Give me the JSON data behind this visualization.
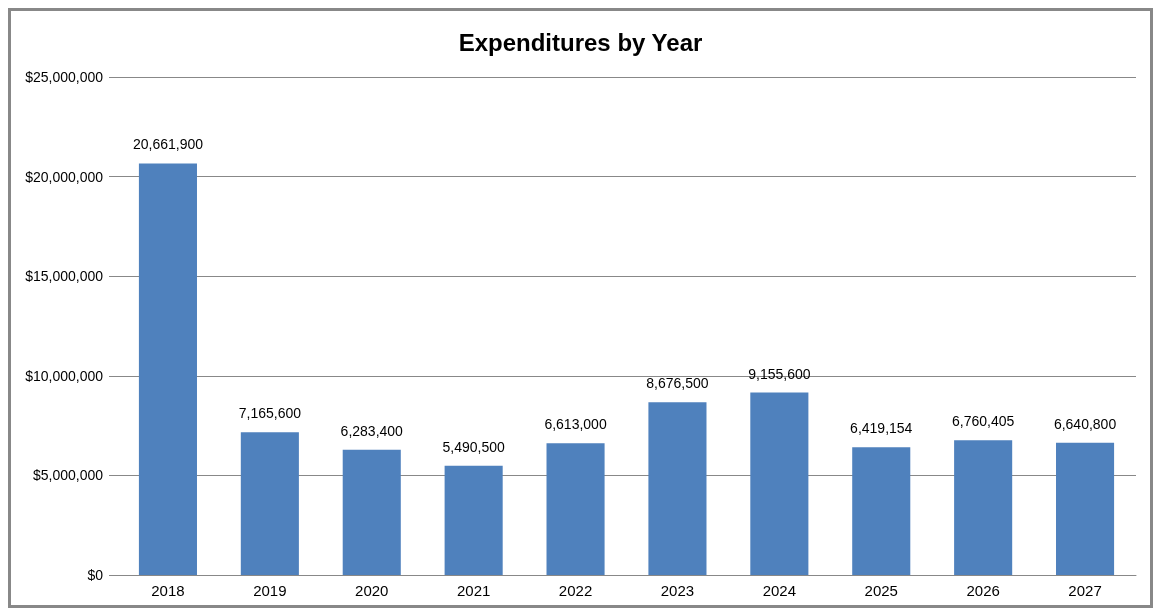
{
  "chart_data": {
    "type": "bar",
    "title": "Expenditures by Year",
    "categories": [
      "2018",
      "2019",
      "2020",
      "2021",
      "2022",
      "2023",
      "2024",
      "2025",
      "2026",
      "2027"
    ],
    "values": [
      20661900,
      7165600,
      6283400,
      5490500,
      6613000,
      8676500,
      9155600,
      6419154,
      6760405,
      6640800
    ],
    "color": "#4f81bd",
    "value_labels": [
      "20,661,900",
      "7,165,600",
      "6,283,400",
      "5,490,500",
      "6,613,000",
      "8,676,500",
      "9,155,600",
      "6,419,154",
      "6,760,405",
      "6,640,800"
    ],
    "ylim": [
      0,
      25000000
    ],
    "yticks": [
      {
        "value": 0,
        "label": "$0"
      },
      {
        "value": 5000000,
        "label": "$5,000,000"
      },
      {
        "value": 10000000,
        "label": "$10,000,000"
      },
      {
        "value": 15000000,
        "label": "$15,000,000"
      },
      {
        "value": 20000000,
        "label": "$20,000,000"
      },
      {
        "value": 25000000,
        "label": "$25,000,000"
      }
    ],
    "grid": "y"
  }
}
